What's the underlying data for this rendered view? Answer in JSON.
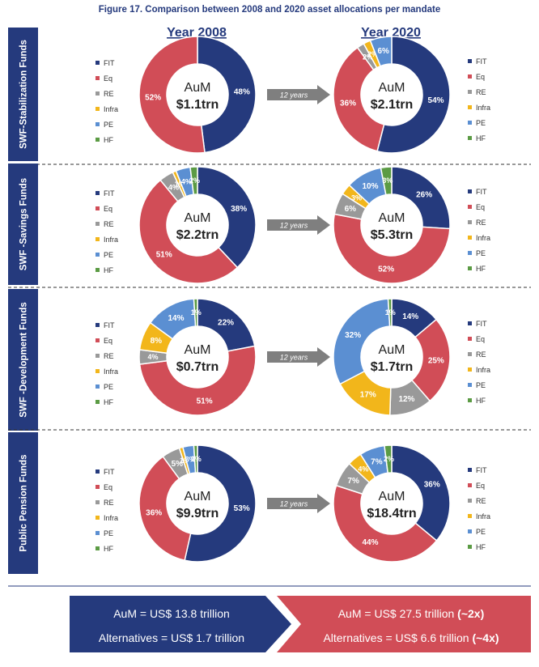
{
  "figure_title": "Figure 17. Comparison between 2008 and 2020 asset allocations per mandate",
  "year_headers": {
    "left": "Year 2008",
    "right": "Year 2020"
  },
  "arrow_label": "12 years",
  "aum_label": "AuM",
  "colors": {
    "FIT": "#253A7D",
    "Eq": "#D14D57",
    "RE": "#999999",
    "Infra": "#F2B61B",
    "PE": "#5B8FD2",
    "HF": "#5B9B44",
    "navy": "#253A7D",
    "red": "#D14D57",
    "title": "#253A7D"
  },
  "chart_data": [
    {
      "type": "pie",
      "donut": true,
      "mandate": "SWF-Stabilization Funds",
      "year": "2008",
      "center_value": "$1.1trn",
      "slices": [
        {
          "key": "FIT",
          "label": "FIT",
          "value": 48,
          "text": "48%"
        },
        {
          "key": "Eq",
          "label": "Eq",
          "value": 52,
          "text": "52%"
        }
      ],
      "legend": [
        "FIT",
        "Eq",
        "RE",
        "Infra",
        "PE",
        "HF"
      ]
    },
    {
      "type": "pie",
      "donut": true,
      "mandate": "SWF-Stabilization Funds",
      "year": "2020",
      "center_value": "$2.1trn",
      "slices": [
        {
          "key": "FIT",
          "label": "FIT",
          "value": 54,
          "text": "54%"
        },
        {
          "key": "Eq",
          "label": "Eq",
          "value": 36,
          "text": "36%"
        },
        {
          "key": "RE",
          "label": "RE",
          "value": 2,
          "text": "2%"
        },
        {
          "key": "Infra",
          "label": "Infra",
          "value": 2,
          "text": "2%"
        },
        {
          "key": "PE",
          "label": "PE",
          "value": 6,
          "text": "6%"
        }
      ],
      "legend": [
        "FIT",
        "Eq",
        "RE",
        "Infra",
        "PE",
        "HF"
      ]
    },
    {
      "type": "pie",
      "donut": true,
      "mandate": "SWF -Savings Funds",
      "year": "2008",
      "center_value": "$2.2trn",
      "slices": [
        {
          "key": "FIT",
          "label": "FIT",
          "value": 38,
          "text": "38%"
        },
        {
          "key": "Eq",
          "label": "Eq",
          "value": 51,
          "text": "51%"
        },
        {
          "key": "RE",
          "label": "RE",
          "value": 4,
          "text": "4%"
        },
        {
          "key": "Infra",
          "label": "Infra",
          "value": 1,
          "text": "1%"
        },
        {
          "key": "PE",
          "label": "PE",
          "value": 4,
          "text": "4%"
        },
        {
          "key": "HF",
          "label": "HF",
          "value": 2,
          "text": "2%"
        }
      ],
      "legend": [
        "FIT",
        "Eq",
        "RE",
        "Infra",
        "PE",
        "HF"
      ]
    },
    {
      "type": "pie",
      "donut": true,
      "mandate": "SWF -Savings Funds",
      "year": "2020",
      "center_value": "$5.3trn",
      "slices": [
        {
          "key": "FIT",
          "label": "FIT",
          "value": 26,
          "text": "26%"
        },
        {
          "key": "Eq",
          "label": "Eq",
          "value": 52,
          "text": "52%"
        },
        {
          "key": "RE",
          "label": "RE",
          "value": 6,
          "text": "6%"
        },
        {
          "key": "Infra",
          "label": "Infra",
          "value": 3,
          "text": "3%"
        },
        {
          "key": "PE",
          "label": "PE",
          "value": 10,
          "text": "10%"
        },
        {
          "key": "HF",
          "label": "HF",
          "value": 3,
          "text": "3%"
        }
      ],
      "legend": [
        "FIT",
        "Eq",
        "RE",
        "Infra",
        "PE",
        "HF"
      ]
    },
    {
      "type": "pie",
      "donut": true,
      "mandate": "SWF -Development Funds",
      "year": "2008",
      "center_value": "$0.7trn",
      "slices": [
        {
          "key": "FIT",
          "label": "FIT",
          "value": 22,
          "text": "22%"
        },
        {
          "key": "Eq",
          "label": "Eq",
          "value": 51,
          "text": "51%"
        },
        {
          "key": "RE",
          "label": "RE",
          "value": 4,
          "text": "4%"
        },
        {
          "key": "Infra",
          "label": "Infra",
          "value": 8,
          "text": "8%"
        },
        {
          "key": "PE",
          "label": "PE",
          "value": 14,
          "text": "14%"
        },
        {
          "key": "HF",
          "label": "HF",
          "value": 1,
          "text": "1%"
        }
      ],
      "legend": [
        "FIT",
        "Eq",
        "RE",
        "Infra",
        "PE",
        "HF"
      ]
    },
    {
      "type": "pie",
      "donut": true,
      "mandate": "SWF -Development Funds",
      "year": "2020",
      "center_value": "$1.7trn",
      "slices": [
        {
          "key": "FIT",
          "label": "FIT",
          "value": 14,
          "text": "14%"
        },
        {
          "key": "Eq",
          "label": "Eq",
          "value": 25,
          "text": "25%"
        },
        {
          "key": "RE",
          "label": "RE",
          "value": 12,
          "text": "12%"
        },
        {
          "key": "Infra",
          "label": "Infra",
          "value": 17,
          "text": "17%"
        },
        {
          "key": "PE",
          "label": "PE",
          "value": 32,
          "text": "32%"
        },
        {
          "key": "HF",
          "label": "HF",
          "value": 1,
          "text": "1%"
        }
      ],
      "legend": [
        "FIT",
        "Eq",
        "RE",
        "Infra",
        "PE",
        "HF"
      ]
    },
    {
      "type": "pie",
      "donut": true,
      "mandate": "Public Pension Funds",
      "year": "2008",
      "center_value": "$9.9trn",
      "slices": [
        {
          "key": "FIT",
          "label": "FIT",
          "value": 53,
          "text": "53%"
        },
        {
          "key": "Eq",
          "label": "Eq",
          "value": 36,
          "text": "36%"
        },
        {
          "key": "RE",
          "label": "RE",
          "value": 5,
          "text": "5%"
        },
        {
          "key": "Infra",
          "label": "Infra",
          "value": 1,
          "text": "1%"
        },
        {
          "key": "PE",
          "label": "PE",
          "value": 3,
          "text": "3%"
        },
        {
          "key": "HF",
          "label": "HF",
          "value": 1,
          "text": "1%"
        }
      ],
      "legend": [
        "FIT",
        "Eq",
        "RE",
        "Infra",
        "PE",
        "HF"
      ]
    },
    {
      "type": "pie",
      "donut": true,
      "mandate": "Public Pension Funds",
      "year": "2020",
      "center_value": "$18.4trn",
      "slices": [
        {
          "key": "FIT",
          "label": "FIT",
          "value": 36,
          "text": "36%"
        },
        {
          "key": "Eq",
          "label": "Eq",
          "value": 44,
          "text": "44%"
        },
        {
          "key": "RE",
          "label": "RE",
          "value": 7,
          "text": "7%"
        },
        {
          "key": "Infra",
          "label": "Infra",
          "value": 4,
          "text": "4%"
        },
        {
          "key": "PE",
          "label": "PE",
          "value": 7,
          "text": "7%"
        },
        {
          "key": "HF",
          "label": "HF",
          "value": 2,
          "text": "2%"
        }
      ],
      "legend": [
        "FIT",
        "Eq",
        "RE",
        "Infra",
        "PE",
        "HF"
      ]
    }
  ],
  "summary": {
    "left_line1": "AuM = US$ 13.8 trillion",
    "left_line2": "Alternatives = US$ 1.7 trillion",
    "right_line1": "AuM = US$ 27.5 trillion",
    "right_line1_bold": " (~2x)",
    "right_line2": "Alternatives = US$ 6.6 trillion",
    "right_line2_bold": " (~4x)"
  }
}
